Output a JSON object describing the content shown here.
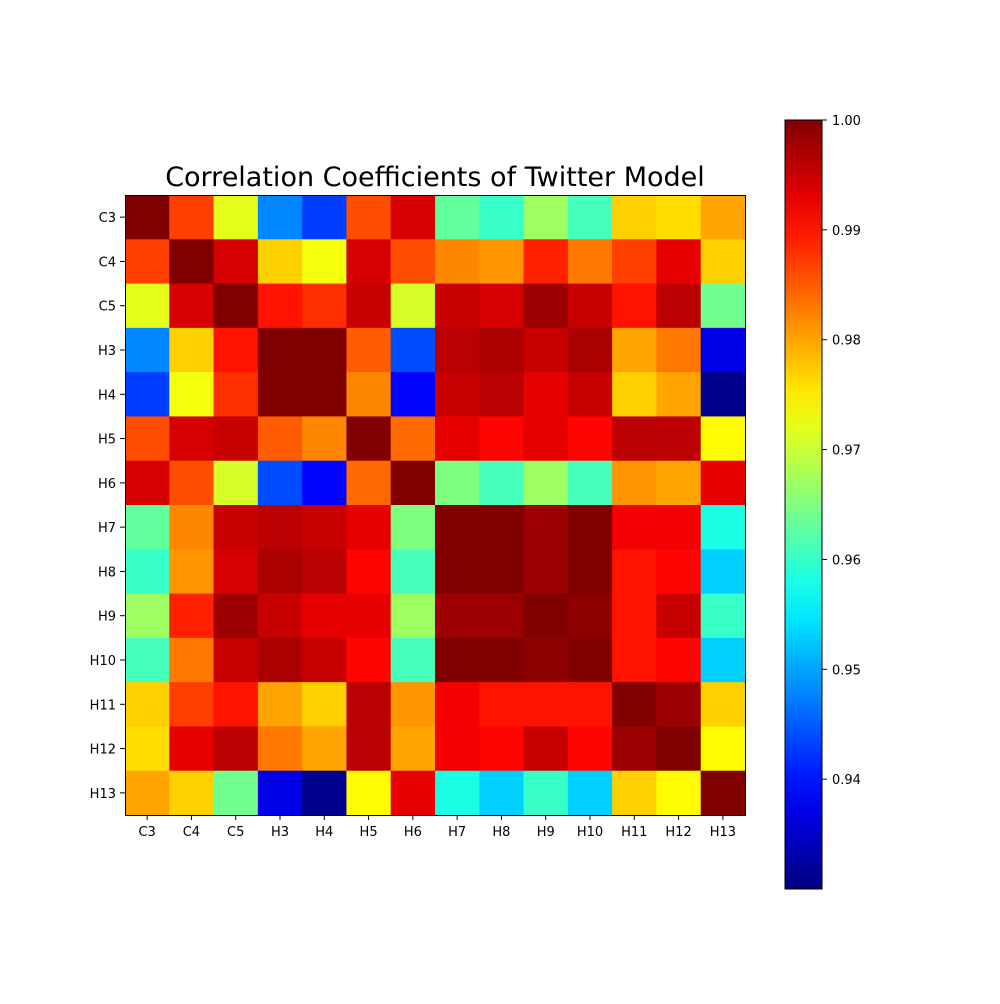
{
  "chart_data": {
    "type": "heatmap",
    "title": "Correlation Coefficients of Twitter Model",
    "xlabel": "",
    "ylabel": "",
    "x_categories": [
      "C3",
      "C4",
      "C5",
      "H3",
      "H4",
      "H5",
      "H6",
      "H7",
      "H8",
      "H9",
      "H10",
      "H11",
      "H12",
      "H13"
    ],
    "y_categories": [
      "C3",
      "C4",
      "C5",
      "H3",
      "H4",
      "H5",
      "H6",
      "H7",
      "H8",
      "H9",
      "H10",
      "H11",
      "H12",
      "H13"
    ],
    "colormap": "jet",
    "vmin": 0.93,
    "vmax": 1.0,
    "colorbar_ticks": [
      "1.00",
      "0.99",
      "0.98",
      "0.97",
      "0.96",
      "0.95",
      "0.94"
    ],
    "colorbar_tick_values": [
      1.0,
      0.99,
      0.98,
      0.97,
      0.96,
      0.95,
      0.94
    ],
    "values": [
      [
        1.0,
        0.987,
        0.972,
        0.948,
        0.943,
        0.986,
        0.994,
        0.963,
        0.96,
        0.967,
        0.961,
        0.977,
        0.976,
        0.98
      ],
      [
        0.987,
        1.0,
        0.994,
        0.977,
        0.973,
        0.994,
        0.986,
        0.982,
        0.981,
        0.989,
        0.983,
        0.987,
        0.993,
        0.977
      ],
      [
        0.972,
        0.994,
        1.0,
        0.99,
        0.988,
        0.995,
        0.971,
        0.995,
        0.994,
        0.998,
        0.995,
        0.99,
        0.996,
        0.964
      ],
      [
        0.948,
        0.977,
        0.99,
        1.0,
        1.0,
        0.985,
        0.944,
        0.996,
        0.997,
        0.995,
        0.997,
        0.98,
        0.983,
        0.937
      ],
      [
        0.943,
        0.973,
        0.988,
        1.0,
        1.0,
        0.982,
        0.939,
        0.995,
        0.996,
        0.993,
        0.995,
        0.977,
        0.98,
        0.931
      ],
      [
        0.986,
        0.994,
        0.995,
        0.985,
        0.982,
        1.0,
        0.984,
        0.993,
        0.991,
        0.993,
        0.991,
        0.996,
        0.996,
        0.974
      ],
      [
        0.994,
        0.986,
        0.971,
        0.944,
        0.939,
        0.984,
        1.0,
        0.965,
        0.961,
        0.967,
        0.961,
        0.981,
        0.98,
        0.993
      ],
      [
        0.963,
        0.982,
        0.995,
        0.996,
        0.995,
        0.993,
        0.965,
        1.0,
        1.0,
        0.998,
        1.0,
        0.992,
        0.992,
        0.958
      ],
      [
        0.96,
        0.981,
        0.994,
        0.997,
        0.996,
        0.991,
        0.961,
        1.0,
        1.0,
        0.998,
        1.0,
        0.99,
        0.991,
        0.953
      ],
      [
        0.967,
        0.989,
        0.998,
        0.995,
        0.993,
        0.993,
        0.967,
        0.998,
        0.998,
        1.0,
        0.999,
        0.99,
        0.995,
        0.96
      ],
      [
        0.961,
        0.983,
        0.995,
        0.997,
        0.995,
        0.991,
        0.961,
        1.0,
        1.0,
        0.999,
        1.0,
        0.99,
        0.991,
        0.953
      ],
      [
        0.977,
        0.987,
        0.99,
        0.98,
        0.977,
        0.996,
        0.981,
        0.992,
        0.99,
        0.99,
        0.99,
        1.0,
        0.998,
        0.977
      ],
      [
        0.976,
        0.993,
        0.996,
        0.983,
        0.98,
        0.996,
        0.98,
        0.992,
        0.991,
        0.995,
        0.991,
        0.998,
        1.0,
        0.974
      ],
      [
        0.98,
        0.977,
        0.964,
        0.937,
        0.931,
        0.974,
        0.993,
        0.958,
        0.953,
        0.96,
        0.953,
        0.977,
        0.974,
        1.0
      ]
    ],
    "grid": false,
    "legend": "colorbar-right"
  }
}
